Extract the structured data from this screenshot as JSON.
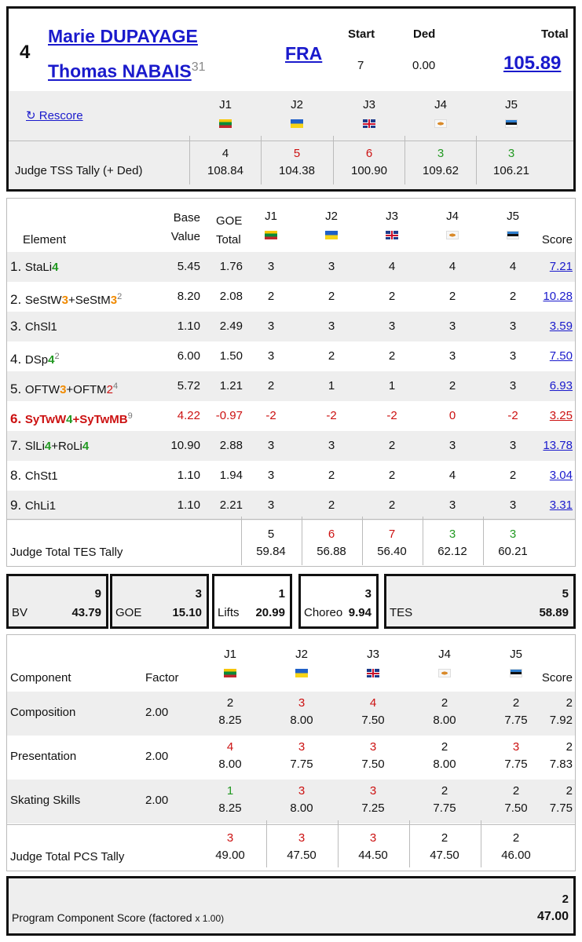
{
  "skater": {
    "rank": "4",
    "name1": "Marie DUPAYAGE",
    "name2": "Thomas NABAIS",
    "sup": "31",
    "nation": "FRA",
    "start_label": "Start",
    "start": "7",
    "ded_label": "Ded",
    "ded": "0.00",
    "total_label": "Total",
    "total": "105.89",
    "rescore": "↻ Rescore"
  },
  "judges": [
    {
      "label": "J1",
      "flag": "lithuania-flag"
    },
    {
      "label": "J2",
      "flag": "ukraine-flag"
    },
    {
      "label": "J3",
      "flag": "uk-flag"
    },
    {
      "label": "J4",
      "flag": "cyprus-flag"
    },
    {
      "label": "J5",
      "flag": "estonia-flag"
    }
  ],
  "tss_tally": {
    "label": "Judge TSS Tally (+ Ded)",
    "ranks": [
      "4",
      "5",
      "6",
      "3",
      "3"
    ],
    "rank_colors": [
      "#111111",
      "#cc1111",
      "#cc1111",
      "#229922",
      "#229922"
    ],
    "scores": [
      "108.84",
      "104.38",
      "100.90",
      "109.62",
      "106.21"
    ]
  },
  "elements_header": {
    "element": "Element",
    "base1": "Base",
    "base2": "Value",
    "goe1": "GOE",
    "goe2": "Total",
    "score": "Score"
  },
  "elements": [
    {
      "no": "1.",
      "parts": [
        [
          "StaLi",
          "k"
        ],
        [
          "4",
          "g"
        ]
      ],
      "sup": "",
      "base": "5.45",
      "goe": "1.76",
      "j": [
        "3",
        "3",
        "4",
        "4",
        "4"
      ],
      "score": "7.21",
      "red": false
    },
    {
      "no": "2.",
      "parts": [
        [
          "SeStW",
          "k"
        ],
        [
          "3",
          "o"
        ],
        [
          "+SeStM",
          "k"
        ],
        [
          "3",
          "o"
        ]
      ],
      "sup": "2",
      "base": "8.20",
      "goe": "2.08",
      "j": [
        "2",
        "2",
        "2",
        "2",
        "2"
      ],
      "score": "10.28",
      "red": false
    },
    {
      "no": "3.",
      "parts": [
        [
          "ChSl1",
          "k"
        ]
      ],
      "sup": "",
      "base": "1.10",
      "goe": "2.49",
      "j": [
        "3",
        "3",
        "3",
        "3",
        "3"
      ],
      "score": "3.59",
      "red": false
    },
    {
      "no": "4.",
      "parts": [
        [
          "DSp",
          "k"
        ],
        [
          "4",
          "g"
        ]
      ],
      "sup": "2",
      "base": "6.00",
      "goe": "1.50",
      "j": [
        "3",
        "2",
        "2",
        "3",
        "3"
      ],
      "score": "7.50",
      "red": false
    },
    {
      "no": "5.",
      "parts": [
        [
          "OFTW",
          "k"
        ],
        [
          "3",
          "o"
        ],
        [
          "+OFTM",
          "k"
        ],
        [
          "2",
          "r"
        ]
      ],
      "sup": "4",
      "base": "5.72",
      "goe": "1.21",
      "j": [
        "2",
        "1",
        "1",
        "2",
        "3"
      ],
      "score": "6.93",
      "red": false
    },
    {
      "no": "6.",
      "parts": [
        [
          "SyTwW",
          "r"
        ],
        [
          "4",
          "g"
        ],
        [
          "+SyTwMB",
          "r"
        ]
      ],
      "sup": "9",
      "base": "4.22",
      "goe": "-0.97",
      "j": [
        "-2",
        "-2",
        "-2",
        "0",
        "-2"
      ],
      "score": "3.25",
      "red": true
    },
    {
      "no": "7.",
      "parts": [
        [
          "SlLi",
          "k"
        ],
        [
          "4",
          "g"
        ],
        [
          "+RoLi",
          "k"
        ],
        [
          "4",
          "g"
        ]
      ],
      "sup": "",
      "base": "10.90",
      "goe": "2.88",
      "j": [
        "3",
        "3",
        "2",
        "3",
        "3"
      ],
      "score": "13.78",
      "red": false
    },
    {
      "no": "8.",
      "parts": [
        [
          "ChSt1",
          "k"
        ]
      ],
      "sup": "",
      "base": "1.10",
      "goe": "1.94",
      "j": [
        "3",
        "2",
        "2",
        "4",
        "2"
      ],
      "score": "3.04",
      "red": false
    },
    {
      "no": "9.",
      "parts": [
        [
          "ChLi1",
          "k"
        ]
      ],
      "sup": "",
      "base": "1.10",
      "goe": "2.21",
      "j": [
        "3",
        "2",
        "2",
        "3",
        "3"
      ],
      "score": "3.31",
      "red": false
    }
  ],
  "tes_tally": {
    "label": "Judge Total TES Tally",
    "ranks": [
      "5",
      "6",
      "7",
      "3",
      "3"
    ],
    "rank_colors": [
      "#111111",
      "#cc1111",
      "#cc1111",
      "#229922",
      "#229922"
    ],
    "scores": [
      "59.84",
      "56.88",
      "56.40",
      "62.12",
      "60.21"
    ]
  },
  "summary": [
    {
      "label": "BV",
      "rank": "9",
      "value": "43.79"
    },
    {
      "label": "GOE",
      "rank": "3",
      "value": "15.10"
    },
    {
      "label": "Lifts",
      "rank": "1",
      "value": "20.99"
    },
    {
      "label": "Choreo",
      "rank": "3",
      "value": "9.94"
    },
    {
      "label": "TES",
      "rank": "5",
      "value": "58.89"
    }
  ],
  "pcs_header": {
    "component": "Component",
    "factor": "Factor",
    "score": "Score"
  },
  "components": [
    {
      "name": "Composition",
      "factor": "2.00",
      "ranks": [
        "2",
        "3",
        "4",
        "2",
        "2"
      ],
      "rank_colors": [
        "#111111",
        "#cc1111",
        "#cc1111",
        "#111111",
        "#111111"
      ],
      "scores": [
        "8.25",
        "8.00",
        "7.50",
        "8.00",
        "7.75"
      ],
      "final_rank": "2",
      "final": "7.92"
    },
    {
      "name": "Presentation",
      "factor": "2.00",
      "ranks": [
        "4",
        "3",
        "3",
        "2",
        "3"
      ],
      "rank_colors": [
        "#cc1111",
        "#cc1111",
        "#cc1111",
        "#111111",
        "#cc1111"
      ],
      "scores": [
        "8.00",
        "7.75",
        "7.50",
        "8.00",
        "7.75"
      ],
      "final_rank": "2",
      "final": "7.83"
    },
    {
      "name": "Skating Skills",
      "factor": "2.00",
      "ranks": [
        "1",
        "3",
        "3",
        "2",
        "2"
      ],
      "rank_colors": [
        "#229922",
        "#cc1111",
        "#cc1111",
        "#111111",
        "#111111"
      ],
      "scores": [
        "8.25",
        "8.00",
        "7.25",
        "7.75",
        "7.50"
      ],
      "final_rank": "2",
      "final": "7.75"
    }
  ],
  "pcs_tally": {
    "label": "Judge Total PCS Tally",
    "ranks": [
      "3",
      "3",
      "3",
      "2",
      "2"
    ],
    "rank_colors": [
      "#cc1111",
      "#cc1111",
      "#cc1111",
      "#111111",
      "#111111"
    ],
    "scores": [
      "49.00",
      "47.50",
      "44.50",
      "47.50",
      "46.00"
    ]
  },
  "pcs_total": {
    "label": "Program Component Score (factored",
    "factor_note": "x 1.00)",
    "rank": "2",
    "value": "47.00"
  }
}
